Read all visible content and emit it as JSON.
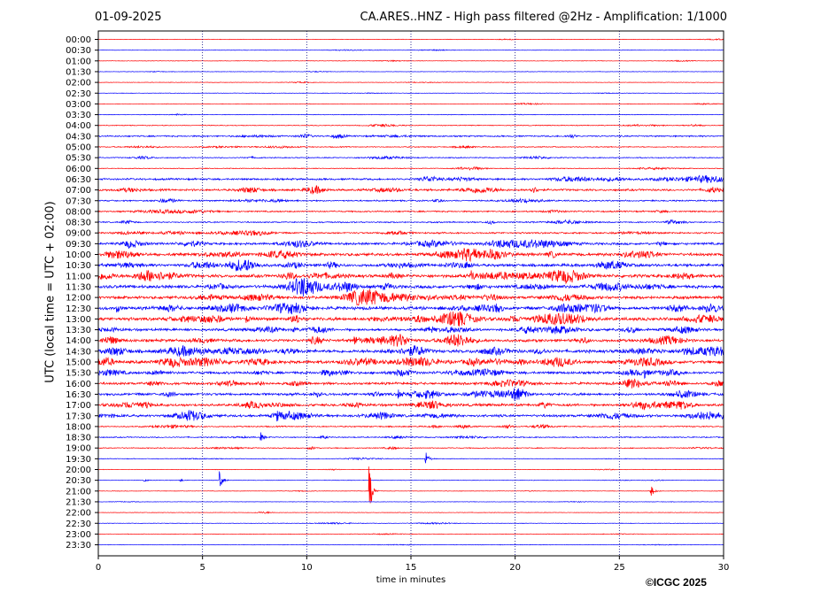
{
  "header": {
    "date": "01-09-2025",
    "title": "CA.ARES..HNZ - High pass filtered @2Hz - Amplification: 1/1000"
  },
  "footer": {
    "copyright": "©ICGC 2025"
  },
  "chart_data": {
    "type": "line",
    "subtype": "helicorder",
    "title": "CA.ARES..HNZ - High pass filtered @2Hz - Amplification: 1/1000",
    "xlabel": "time in minutes",
    "ylabel": "UTC (local time = UTC + 02:00)",
    "xlim": [
      0,
      30
    ],
    "x_ticks": [
      "0",
      "5",
      "10",
      "15",
      "20",
      "25",
      "30"
    ],
    "grid": "vertical dotted at every 5 minutes",
    "colors": {
      "odd_rows": "#ff0000",
      "even_rows": "#0000ff",
      "grid": "#000080"
    },
    "rows": [
      "00:00",
      "00:30",
      "01:00",
      "01:30",
      "02:00",
      "02:30",
      "03:00",
      "03:30",
      "04:00",
      "04:30",
      "05:00",
      "05:30",
      "06:00",
      "06:30",
      "07:00",
      "07:30",
      "08:00",
      "08:30",
      "09:00",
      "09:30",
      "10:00",
      "10:30",
      "11:00",
      "11:30",
      "12:00",
      "12:30",
      "13:00",
      "13:30",
      "14:00",
      "14:30",
      "15:00",
      "15:30",
      "16:00",
      "16:30",
      "17:00",
      "17:30",
      "18:00",
      "18:30",
      "19:00",
      "19:30",
      "20:00",
      "20:30",
      "21:00",
      "21:30",
      "22:00",
      "22:30",
      "23:00",
      "23:30"
    ],
    "row_noise_level": [
      0.3,
      0.3,
      0.3,
      0.3,
      0.3,
      0.3,
      0.3,
      0.4,
      0.5,
      0.9,
      0.6,
      0.6,
      0.5,
      1.2,
      1.3,
      0.9,
      0.9,
      0.8,
      1.0,
      1.5,
      1.8,
      1.8,
      2.0,
      2.0,
      1.8,
      2.0,
      2.0,
      1.6,
      1.8,
      2.0,
      2.0,
      1.6,
      1.5,
      1.6,
      1.6,
      1.6,
      0.8,
      0.7,
      0.6,
      0.4,
      0.3,
      0.3,
      0.3,
      0.3,
      0.3,
      0.3,
      0.3,
      0.3
    ],
    "events": [
      {
        "row": "18:30",
        "minute": 7.8,
        "amplitude": 5
      },
      {
        "row": "19:30",
        "minute": 15.7,
        "amplitude": 9
      },
      {
        "row": "20:30",
        "minute": 5.8,
        "amplitude": 12
      },
      {
        "row": "20:30",
        "minute": 2.2,
        "amplitude": 2
      },
      {
        "row": "20:30",
        "minute": 3.9,
        "amplitude": 2
      },
      {
        "row": "21:00",
        "minute": 13.0,
        "amplitude": 30
      },
      {
        "row": "21:00",
        "minute": 26.5,
        "amplitude": 9
      },
      {
        "row": "11:00",
        "minute": 17.9,
        "amplitude": 5
      },
      {
        "row": "14:00",
        "minute": 12.3,
        "amplitude": 5
      },
      {
        "row": "15:30",
        "minute": 26.2,
        "amplitude": 5
      },
      {
        "row": "16:30",
        "minute": 14.4,
        "amplitude": 5
      },
      {
        "row": "17:30",
        "minute": 8.6,
        "amplitude": 4
      },
      {
        "row": "12:30",
        "minute": 0.9,
        "amplitude": 5
      },
      {
        "row": "13:00",
        "minute": 7.1,
        "amplitude": 4
      },
      {
        "row": "13:30",
        "minute": 9.3,
        "amplitude": 4
      }
    ]
  }
}
